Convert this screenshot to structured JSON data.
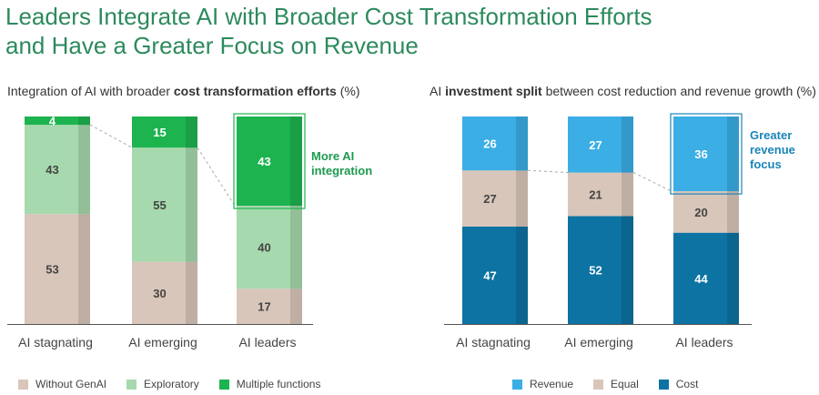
{
  "page": {
    "title_line1": "Leaders Integrate AI with Broader Cost Transformation Efforts",
    "title_line2": "and Have a Greater Focus on Revenue"
  },
  "chart_data": [
    {
      "type": "bar",
      "stacked": true,
      "title_prefix": "Integration of AI with broader ",
      "title_bold": "cost transformation efforts",
      "title_suffix": " (%)",
      "categories": [
        "AI stagnating",
        "AI emerging",
        "AI leaders"
      ],
      "series": [
        {
          "name": "Without GenAI",
          "values": [
            53,
            30,
            17
          ],
          "color": "#d9c6ba",
          "label_color": "#444444"
        },
        {
          "name": "Exploratory",
          "values": [
            43,
            55,
            40
          ],
          "color": "#a6d9ad",
          "label_color": "#444444"
        },
        {
          "name": "Multiple functions",
          "values": [
            4,
            15,
            43
          ],
          "color": "#1db34f",
          "label_color": "#ffffff"
        }
      ],
      "ylim": [
        0,
        100
      ],
      "annotation": {
        "line1": "More AI",
        "line2": "integration",
        "color": "#1b9a4e"
      }
    },
    {
      "type": "bar",
      "stacked": true,
      "title_prefix": "AI ",
      "title_bold": "investment split",
      "title_suffix": " between cost reduction and revenue growth (%)",
      "categories": [
        "AI stagnating",
        "AI emerging",
        "AI leaders"
      ],
      "series": [
        {
          "name": "Cost",
          "values": [
            47,
            52,
            44
          ],
          "color": "#0d73a3",
          "label_color": "#ffffff"
        },
        {
          "name": "Equal",
          "values": [
            27,
            21,
            20
          ],
          "color": "#d9c6ba",
          "label_color": "#444444"
        },
        {
          "name": "Revenue",
          "values": [
            26,
            27,
            36
          ],
          "color": "#3aaee5",
          "label_color": "#ffffff"
        }
      ],
      "legend_order": [
        "Revenue",
        "Equal",
        "Cost"
      ],
      "ylim": [
        0,
        100
      ],
      "annotation": {
        "line1": "Greater",
        "line2": "revenue",
        "line3": "focus",
        "color": "#1a85b8"
      }
    }
  ]
}
